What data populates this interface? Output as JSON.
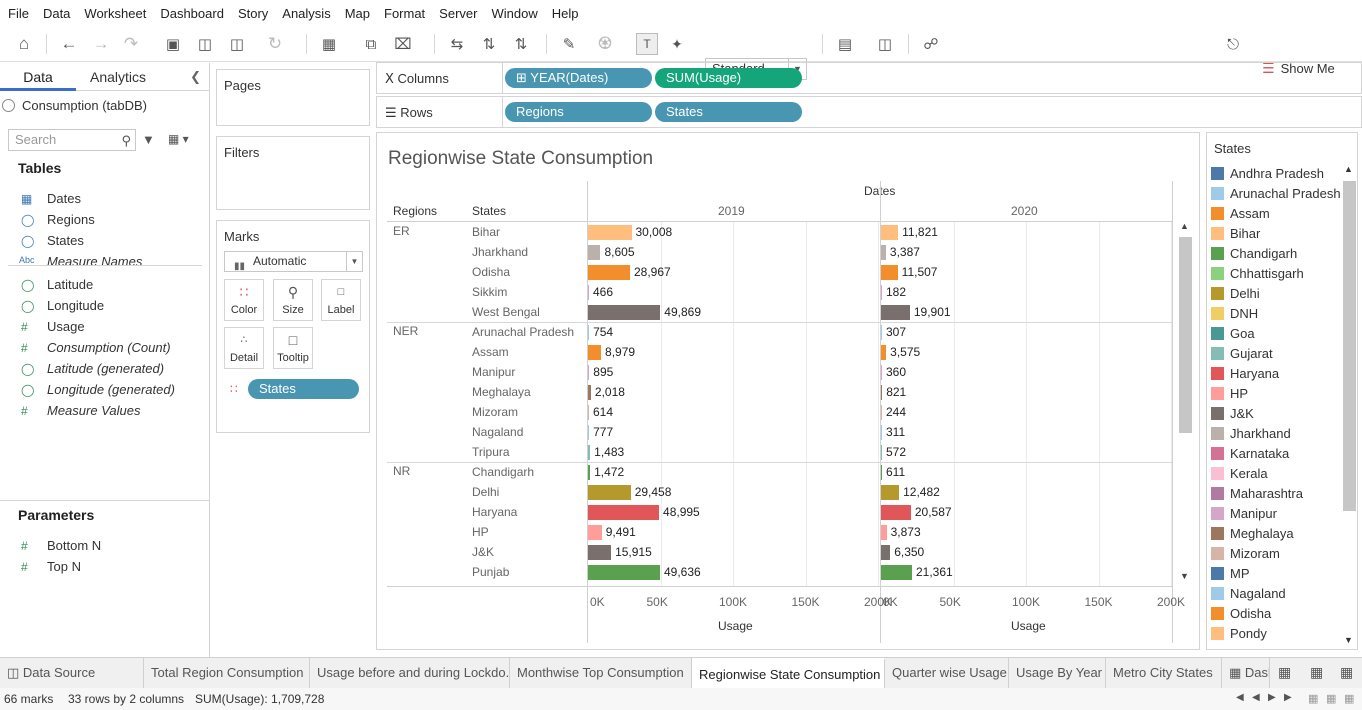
{
  "menu": [
    "File",
    "Data",
    "Worksheet",
    "Dashboard",
    "Story",
    "Analysis",
    "Map",
    "Format",
    "Server",
    "Window",
    "Help"
  ],
  "toolbar": {
    "fit": "Standard",
    "show_me": "Show Me"
  },
  "datapane": {
    "tab_data": "Data",
    "tab_analytics": "Analytics",
    "datasource": "Consumption (tabDB)",
    "search_placeholder": "Search",
    "tables_heading": "Tables",
    "fields": [
      {
        "name": "Dates",
        "type": "date",
        "italic": false
      },
      {
        "name": "Regions",
        "type": "geo",
        "italic": false
      },
      {
        "name": "States",
        "type": "geo",
        "italic": false
      },
      {
        "name": "Measure Names",
        "type": "abc",
        "italic": true
      },
      {
        "name": "Latitude",
        "type": "geo",
        "italic": false
      },
      {
        "name": "Longitude",
        "type": "geo",
        "italic": false
      },
      {
        "name": "Usage",
        "type": "num",
        "italic": false
      },
      {
        "name": "Consumption (Count)",
        "type": "num",
        "italic": true
      },
      {
        "name": "Latitude (generated)",
        "type": "geo",
        "italic": true
      },
      {
        "name": "Longitude (generated)",
        "type": "geo",
        "italic": true
      },
      {
        "name": "Measure Values",
        "type": "num",
        "italic": true
      }
    ],
    "parameters_heading": "Parameters",
    "parameters": [
      "Bottom N",
      "Top N"
    ]
  },
  "cards": {
    "pages": "Pages",
    "filters": "Filters",
    "marks": "Marks",
    "mark_type": "Automatic",
    "mark_buttons": [
      "Color",
      "Size",
      "Label",
      "Detail",
      "Tooltip"
    ],
    "marks_pill": "States"
  },
  "shelves": {
    "columns_label": "Columns",
    "rows_label": "Rows",
    "columns": [
      "YEAR(Dates)",
      "SUM(Usage)"
    ],
    "rows": [
      "Regions",
      "States"
    ]
  },
  "viz": {
    "title": "Regionwise State Consumption",
    "dates_header": "Dates",
    "regions_header": "Regions",
    "states_header": "States",
    "axis_label": "Usage",
    "axis_ticks": [
      "0K",
      "50K",
      "100K",
      "150K",
      "200K"
    ]
  },
  "chart_data": {
    "type": "bar",
    "title": "Regionwise State Consumption",
    "xlabel": "Usage",
    "ylabel": "",
    "xlim": [
      0,
      200000
    ],
    "columns": [
      "2019",
      "2020"
    ],
    "groups": [
      {
        "region": "ER",
        "rows": [
          {
            "state": "Bihar",
            "v2019": 30008,
            "v2020": 11821,
            "l2019": "30,008",
            "l2020": "11,821",
            "color": "#ffbe7d"
          },
          {
            "state": "Jharkhand",
            "v2019": 8605,
            "v2020": 3387,
            "l2019": "8,605",
            "l2020": "3,387",
            "color": "#bab0ac"
          },
          {
            "state": "Odisha",
            "v2019": 28967,
            "v2020": 11507,
            "l2019": "28,967",
            "l2020": "11,507",
            "color": "#f28e2b"
          },
          {
            "state": "Sikkim",
            "v2019": 466,
            "v2020": 182,
            "l2019": "466",
            "l2020": "182",
            "color": "#d4a6c8"
          },
          {
            "state": "West Bengal",
            "v2019": 49869,
            "v2020": 19901,
            "l2019": "49,869",
            "l2020": "19,901",
            "color": "#79706e"
          }
        ]
      },
      {
        "region": "NER",
        "rows": [
          {
            "state": "Arunachal Pradesh",
            "v2019": 754,
            "v2020": 307,
            "l2019": "754",
            "l2020": "307",
            "color": "#a0cbe8"
          },
          {
            "state": "Assam",
            "v2019": 8979,
            "v2020": 3575,
            "l2019": "8,979",
            "l2020": "3,575",
            "color": "#f28e2b"
          },
          {
            "state": "Manipur",
            "v2019": 895,
            "v2020": 360,
            "l2019": "895",
            "l2020": "360",
            "color": "#d4a6c8"
          },
          {
            "state": "Meghalaya",
            "v2019": 2018,
            "v2020": 821,
            "l2019": "2,018",
            "l2020": "821",
            "color": "#9d7660"
          },
          {
            "state": "Mizoram",
            "v2019": 614,
            "v2020": 244,
            "l2019": "614",
            "l2020": "244",
            "color": "#d7b5a6"
          },
          {
            "state": "Nagaland",
            "v2019": 777,
            "v2020": 311,
            "l2019": "777",
            "l2020": "311",
            "color": "#a0cbe8"
          },
          {
            "state": "Tripura",
            "v2019": 1483,
            "v2020": 572,
            "l2019": "1,483",
            "l2020": "572",
            "color": "#86bcb6"
          }
        ]
      },
      {
        "region": "NR",
        "rows": [
          {
            "state": "Chandigarh",
            "v2019": 1472,
            "v2020": 611,
            "l2019": "1,472",
            "l2020": "611",
            "color": "#59a14f"
          },
          {
            "state": "Delhi",
            "v2019": 29458,
            "v2020": 12482,
            "l2019": "29,458",
            "l2020": "12,482",
            "color": "#b6992d"
          },
          {
            "state": "Haryana",
            "v2019": 48995,
            "v2020": 20587,
            "l2019": "48,995",
            "l2020": "20,587",
            "color": "#e15759"
          },
          {
            "state": "HP",
            "v2019": 9491,
            "v2020": 3873,
            "l2019": "9,491",
            "l2020": "3,873",
            "color": "#ff9d9a"
          },
          {
            "state": "J&K",
            "v2019": 15915,
            "v2020": 6350,
            "l2019": "15,915",
            "l2020": "6,350",
            "color": "#79706e"
          },
          {
            "state": "Punjab",
            "v2019": 49636,
            "v2020": 21361,
            "l2019": "49,636",
            "l2020": "21,361",
            "color": "#59a14f"
          }
        ]
      }
    ]
  },
  "legend": {
    "title": "States",
    "items": [
      {
        "label": "Andhra Pradesh",
        "color": "#4e79a7"
      },
      {
        "label": "Arunachal Pradesh",
        "color": "#a0cbe8"
      },
      {
        "label": "Assam",
        "color": "#f28e2b"
      },
      {
        "label": "Bihar",
        "color": "#ffbe7d"
      },
      {
        "label": "Chandigarh",
        "color": "#59a14f"
      },
      {
        "label": "Chhattisgarh",
        "color": "#8cd17d"
      },
      {
        "label": "Delhi",
        "color": "#b6992d"
      },
      {
        "label": "DNH",
        "color": "#f1ce63"
      },
      {
        "label": "Goa",
        "color": "#499894"
      },
      {
        "label": "Gujarat",
        "color": "#86bcb6"
      },
      {
        "label": "Haryana",
        "color": "#e15759"
      },
      {
        "label": "HP",
        "color": "#ff9d9a"
      },
      {
        "label": "J&K",
        "color": "#79706e"
      },
      {
        "label": "Jharkhand",
        "color": "#bab0ac"
      },
      {
        "label": "Karnataka",
        "color": "#d37295"
      },
      {
        "label": "Kerala",
        "color": "#fabfd2"
      },
      {
        "label": "Maharashtra",
        "color": "#b07aa1"
      },
      {
        "label": "Manipur",
        "color": "#d4a6c8"
      },
      {
        "label": "Meghalaya",
        "color": "#9d7660"
      },
      {
        "label": "Mizoram",
        "color": "#d7b5a6"
      },
      {
        "label": "MP",
        "color": "#4e79a7"
      },
      {
        "label": "Nagaland",
        "color": "#a0cbe8"
      },
      {
        "label": "Odisha",
        "color": "#f28e2b"
      },
      {
        "label": "Pondy",
        "color": "#ffbe7d"
      }
    ]
  },
  "sheet_tabs": [
    {
      "label": "Data Source",
      "active": false
    },
    {
      "label": "Total Region Consumption",
      "active": false
    },
    {
      "label": "Usage before and during Lockdo...",
      "active": false
    },
    {
      "label": "Monthwise Top Consumption",
      "active": false
    },
    {
      "label": "Regionwise State Consumption",
      "active": true
    },
    {
      "label": "Quarter wise Usage",
      "active": false
    },
    {
      "label": "Usage By Year",
      "active": false
    },
    {
      "label": "Metro City States",
      "active": false
    },
    {
      "label": "Dasl",
      "active": false
    }
  ],
  "status": {
    "marks": "66 marks",
    "rows": "33 rows by 2 columns",
    "sum": "SUM(Usage): 1,709,728"
  }
}
